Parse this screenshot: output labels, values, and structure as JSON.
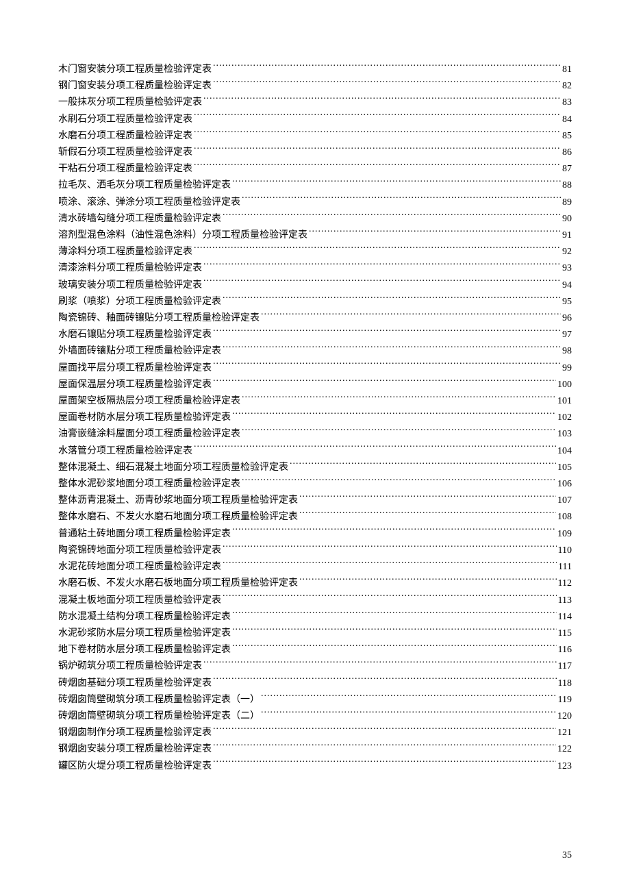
{
  "pageNumber": "35",
  "style": {
    "backgroundColor": "#ffffff",
    "textColor": "#000000",
    "fontSize": 14,
    "lineHeight": 24.2,
    "fontFamily": "SimSun"
  },
  "entries": [
    {
      "title": "木门窗安装分项工程质量检验评定表",
      "page": "81"
    },
    {
      "title": "钢门窗安装分项工程质量检验评定表",
      "page": "82"
    },
    {
      "title": "一般抹灰分项工程质量检验评定表",
      "page": "83"
    },
    {
      "title": "水刷石分项工程质量检验评定表",
      "page": "84"
    },
    {
      "title": "水磨石分项工程质量检验评定表",
      "page": "85"
    },
    {
      "title": "斩假石分项工程质量检验评定表",
      "page": "86"
    },
    {
      "title": "干粘石分项工程质量检验评定表",
      "page": "87"
    },
    {
      "title": "拉毛灰、洒毛灰分项工程质量检验评定表",
      "page": "88"
    },
    {
      "title": "喷涂、滚涂、弹涂分项工程质量检验评定表",
      "page": "89"
    },
    {
      "title": "清水砖墙勾缝分项工程质量检验评定表",
      "page": "90"
    },
    {
      "title": "溶剂型混色涂料（油性混色涂料）分项工程质量检验评定表",
      "page": "91"
    },
    {
      "title": "薄涂料分项工程质量检验评定表",
      "page": "92"
    },
    {
      "title": "清漆涂料分项工程质量检验评定表",
      "page": "93"
    },
    {
      "title": "玻璃安装分项工程质量检验评定表",
      "page": "94"
    },
    {
      "title": "刷浆（喷浆）分项工程质量检验评定表",
      "page": "95"
    },
    {
      "title": "陶瓷锦砖、釉面砖镶贴分项工程质量检验评定表",
      "page": "96"
    },
    {
      "title": "水磨石镶贴分项工程质量检验评定表",
      "page": "97"
    },
    {
      "title": "外墙面砖镶贴分项工程质量检验评定表",
      "page": "98"
    },
    {
      "title": "屋面找平层分项工程质量检验评定表",
      "page": "99"
    },
    {
      "title": "屋面保温层分项工程质量检验评定表",
      "page": "100"
    },
    {
      "title": "屋面架空板隔热层分项工程质量检验评定表",
      "page": "101"
    },
    {
      "title": "屋面卷材防水层分项工程质量检验评定表",
      "page": "102"
    },
    {
      "title": "油膏嵌缝涂料屋面分项工程质量检验评定表",
      "page": "103"
    },
    {
      "title": "水落管分项工程质量检验评定表",
      "page": "104"
    },
    {
      "title": "整体混凝土、细石混凝土地面分项工程质量检验评定表",
      "page": "105"
    },
    {
      "title": "整体水泥砂浆地面分项工程质量检验评定表",
      "page": "106"
    },
    {
      "title": "整体沥青混凝土、沥青砂浆地面分项工程质量检验评定表",
      "page": "107"
    },
    {
      "title": "整体水磨石、不发火水磨石地面分项工程质量检验评定表",
      "page": "108"
    },
    {
      "title": "普通粘土砖地面分项工程质量检验评定表",
      "page": "109"
    },
    {
      "title": "陶瓷锦砖地面分项工程质量检验评定表",
      "page": "110"
    },
    {
      "title": "水泥花砖地面分项工程质量检验评定表",
      "page": "111"
    },
    {
      "title": "水磨石板、不发火水磨石板地面分项工程质量检验评定表",
      "page": "112"
    },
    {
      "title": "混凝土板地面分项工程质量检验评定表",
      "page": "113"
    },
    {
      "title": "防水混凝土结构分项工程质量检验评定表",
      "page": "114"
    },
    {
      "title": "水泥砂浆防水层分项工程质量检验评定表",
      "page": "115"
    },
    {
      "title": "地下卷材防水层分项工程质量检验评定表",
      "page": "116"
    },
    {
      "title": "锅炉砌筑分项工程质量检验评定表",
      "page": "117"
    },
    {
      "title": "砖烟囱基础分项工程质量检验评定表",
      "page": "118"
    },
    {
      "title": "砖烟囱筒壁砌筑分项工程质量检验评定表（一）",
      "page": "119"
    },
    {
      "title": "砖烟囱筒壁砌筑分项工程质量检验评定表（二）",
      "page": "120"
    },
    {
      "title": "钢烟囱制作分项工程质量检验评定表",
      "page": "121"
    },
    {
      "title": "钢烟囱安装分项工程质量检验评定表",
      "page": "122"
    },
    {
      "title": "罐区防火堤分项工程质量检验评定表",
      "page": "123"
    }
  ]
}
